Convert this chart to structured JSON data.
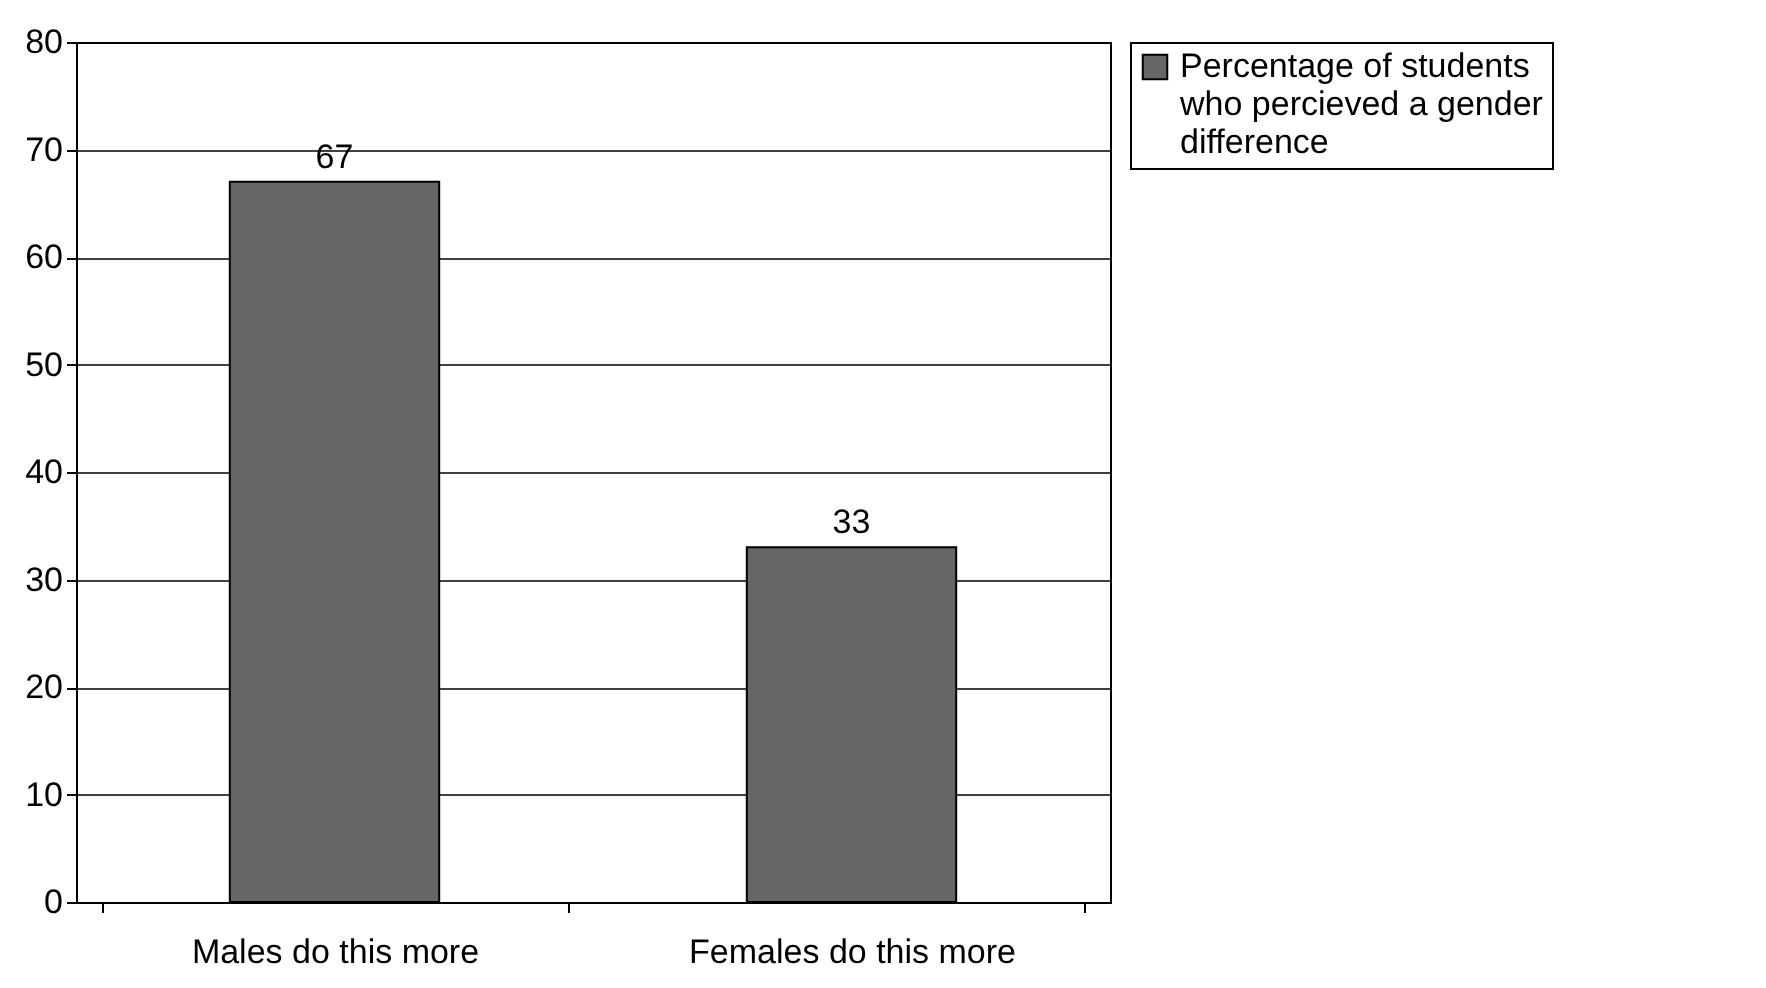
{
  "chart_data": {
    "type": "bar",
    "categories": [
      "Males do this more",
      "Females do this more"
    ],
    "series": [
      {
        "name": "Percentage of students who percieved a gender difference",
        "color": "#666666",
        "values": [
          67,
          33
        ]
      }
    ],
    "ylim": [
      0,
      80
    ],
    "yticks": [
      0,
      10,
      20,
      30,
      40,
      50,
      60,
      70,
      80
    ],
    "grid": "y",
    "legend": "right",
    "data_labels": true
  }
}
